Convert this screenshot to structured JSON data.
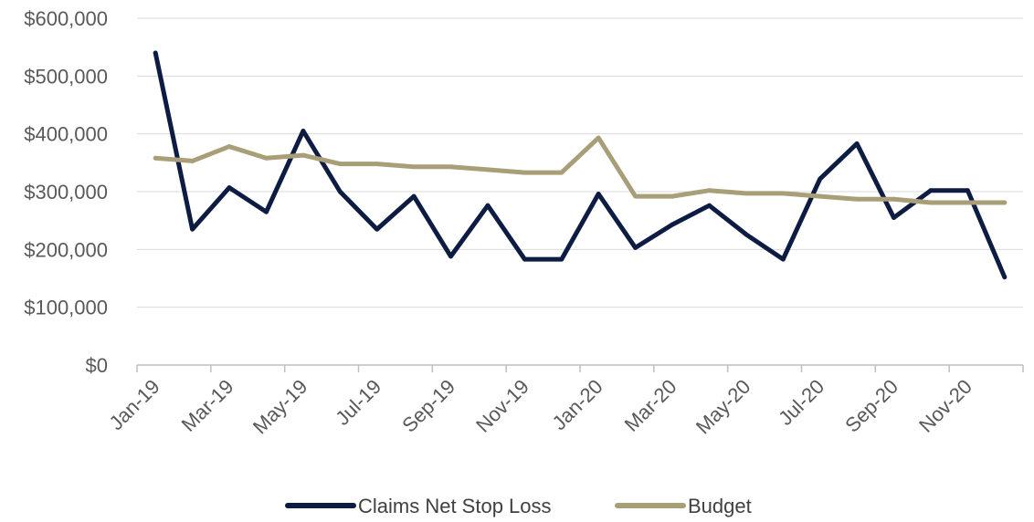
{
  "chart_data": {
    "type": "line",
    "title": "",
    "xlabel": "",
    "ylabel": "",
    "ylim": [
      0,
      600000
    ],
    "y_ticks": [
      "$600,000",
      "$500,000",
      "$400,000",
      "$300,000",
      "$200,000",
      "$100,000",
      "$0"
    ],
    "x_tick_labels": [
      "Jan-19",
      "Mar-19",
      "May-19",
      "Jul-19",
      "Sep-19",
      "Nov-19",
      "Jan-20",
      "Mar-20",
      "May-20",
      "Jul-20",
      "Sep-20",
      "Nov-20"
    ],
    "categories": [
      "Jan-19",
      "Feb-19",
      "Mar-19",
      "Apr-19",
      "May-19",
      "Jun-19",
      "Jul-19",
      "Aug-19",
      "Sep-19",
      "Oct-19",
      "Nov-19",
      "Dec-19",
      "Jan-20",
      "Feb-20",
      "Mar-20",
      "Apr-20",
      "May-20",
      "Jun-20",
      "Jul-20",
      "Aug-20",
      "Sep-20",
      "Oct-20",
      "Nov-20",
      "Dec-20"
    ],
    "grid": true,
    "legend_position": "bottom",
    "series": [
      {
        "name": "Claims Net Stop Loss",
        "color": "#0d1c42",
        "values": [
          540000,
          235000,
          307000,
          265000,
          405000,
          300000,
          235000,
          292000,
          188000,
          276000,
          183000,
          183000,
          296000,
          203000,
          243000,
          276000,
          226000,
          183000,
          322000,
          383000,
          255000,
          302000,
          302000,
          152000
        ]
      },
      {
        "name": "Budget",
        "color": "#a89e78",
        "values": [
          358000,
          353000,
          378000,
          358000,
          363000,
          348000,
          348000,
          343000,
          343000,
          338000,
          333000,
          333000,
          393000,
          292000,
          292000,
          302000,
          297000,
          297000,
          292000,
          287000,
          287000,
          281000,
          281000,
          281000
        ]
      }
    ]
  }
}
